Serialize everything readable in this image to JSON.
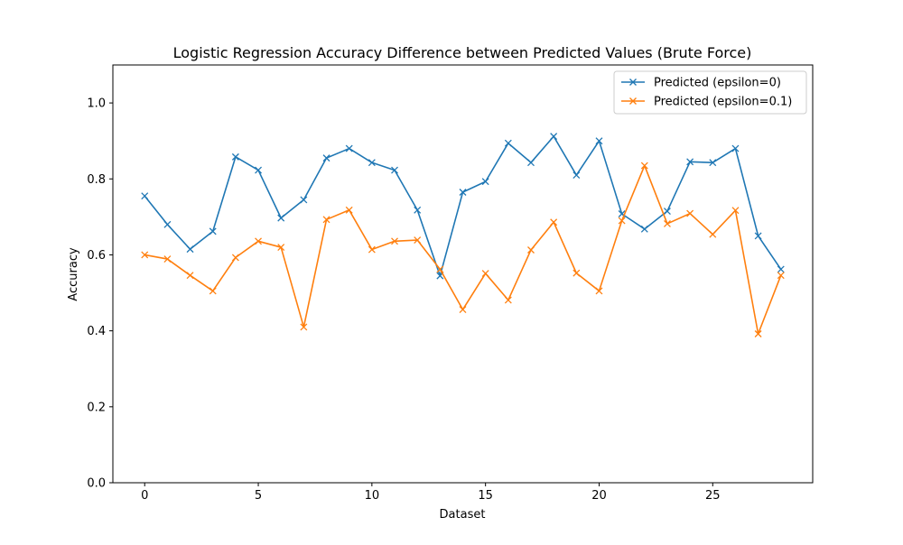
{
  "chart_data": {
    "type": "line",
    "title": "Logistic Regression Accuracy Difference between Predicted Values (Brute Force)",
    "xlabel": "Dataset",
    "ylabel": "Accuracy",
    "xlim": [
      -1.4,
      29.4
    ],
    "ylim": [
      0,
      1.1
    ],
    "xticks": [
      0,
      5,
      10,
      15,
      20,
      25
    ],
    "yticks": [
      0.0,
      0.2,
      0.4,
      0.6,
      0.8,
      1.0
    ],
    "ytick_labels": [
      "0.0",
      "0.2",
      "0.4",
      "0.6",
      "0.8",
      "1.0"
    ],
    "grid": false,
    "legend_position": "top-right",
    "marker": "x",
    "x": [
      0,
      1,
      2,
      3,
      4,
      5,
      6,
      7,
      8,
      9,
      10,
      11,
      12,
      13,
      14,
      15,
      16,
      17,
      18,
      19,
      20,
      21,
      22,
      23,
      24,
      25,
      26,
      27,
      28
    ],
    "series": [
      {
        "name": "Predicted (epsilon=0)",
        "color": "#1f77b4",
        "values": [
          0.755,
          0.68,
          0.615,
          0.662,
          0.858,
          0.823,
          0.697,
          0.745,
          0.855,
          0.88,
          0.843,
          0.823,
          0.718,
          0.545,
          0.765,
          0.793,
          0.894,
          0.843,
          0.912,
          0.81,
          0.9,
          0.708,
          0.668,
          0.715,
          0.845,
          0.843,
          0.88,
          0.65,
          0.562
        ]
      },
      {
        "name": "Predicted (epsilon=0.1)",
        "color": "#ff7f0e",
        "values": [
          0.6,
          0.589,
          0.546,
          0.505,
          0.593,
          0.636,
          0.62,
          0.41,
          0.693,
          0.718,
          0.614,
          0.636,
          0.639,
          0.562,
          0.456,
          0.551,
          0.481,
          0.613,
          0.686,
          0.552,
          0.505,
          0.69,
          0.835,
          0.682,
          0.709,
          0.654,
          0.717,
          0.392,
          0.546
        ]
      }
    ]
  }
}
